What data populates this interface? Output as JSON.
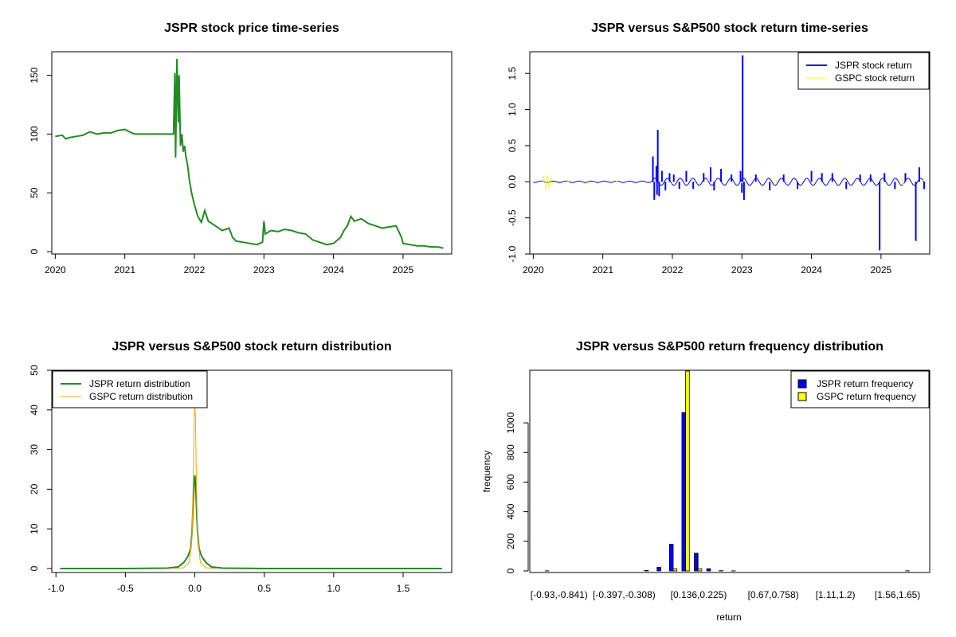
{
  "colors": {
    "jspr_price": "#228B22",
    "jspr_return": "#0000FF",
    "gspc_return": "#FFFF00",
    "jspr_density": "#228B22",
    "gspc_density": "#FFA500",
    "jspr_hist": "#0000FF",
    "gspc_hist": "#FFFF00"
  },
  "chart_data": [
    {
      "type": "line",
      "title": "JSPR stock price time-series",
      "xlabel": "",
      "ylabel": "",
      "xlim": [
        2019.95,
        2025.7
      ],
      "ylim": [
        -2,
        170
      ],
      "x_ticks": [
        2020,
        2021,
        2022,
        2023,
        2024,
        2025
      ],
      "x_tick_labels": [
        "2020",
        "2021",
        "2022",
        "2023",
        "2024",
        "2025"
      ],
      "y_ticks": [
        0,
        50,
        100,
        150
      ],
      "y_tick_labels": [
        "0",
        "50",
        "100",
        "150"
      ],
      "series": [
        {
          "name": "JSPR stock price",
          "color_key": "jspr_price",
          "x": [
            2020.0,
            2020.1,
            2020.15,
            2020.2,
            2020.3,
            2020.4,
            2020.5,
            2020.6,
            2020.7,
            2020.8,
            2020.9,
            2021.0,
            2021.1,
            2021.15,
            2021.2,
            2021.4,
            2021.6,
            2021.7,
            2021.72,
            2021.73,
            2021.75,
            2021.77,
            2021.78,
            2021.8,
            2021.82,
            2021.84,
            2021.86,
            2021.88,
            2021.9,
            2021.93,
            2021.96,
            2022.0,
            2022.05,
            2022.1,
            2022.15,
            2022.2,
            2022.3,
            2022.4,
            2022.5,
            2022.55,
            2022.6,
            2022.7,
            2022.8,
            2022.9,
            2022.98,
            2023.0,
            2023.02,
            2023.1,
            2023.2,
            2023.3,
            2023.4,
            2023.5,
            2023.6,
            2023.7,
            2023.8,
            2023.9,
            2024.0,
            2024.1,
            2024.15,
            2024.2,
            2024.25,
            2024.3,
            2024.4,
            2024.5,
            2024.6,
            2024.7,
            2024.8,
            2024.9,
            2024.98,
            2025.0,
            2025.1,
            2025.2,
            2025.3,
            2025.4,
            2025.5,
            2025.58
          ],
          "y": [
            98,
            99,
            96,
            97,
            98,
            99,
            102,
            100,
            101,
            101,
            103,
            104,
            101,
            100,
            100,
            100,
            100,
            100,
            152,
            80,
            164,
            110,
            150,
            90,
            100,
            85,
            90,
            80,
            75,
            60,
            50,
            40,
            30,
            25,
            35,
            26,
            22,
            18,
            20,
            12,
            9,
            8,
            7,
            6,
            8,
            26,
            15,
            18,
            17,
            19,
            18,
            16,
            15,
            10,
            8,
            6,
            7,
            12,
            18,
            22,
            30,
            26,
            28,
            24,
            22,
            20,
            21,
            22,
            12,
            7,
            6,
            5,
            5,
            4,
            4,
            3
          ]
        }
      ]
    },
    {
      "type": "line",
      "title": "JSPR versus S&P500 stock return time-series",
      "xlabel": "",
      "ylabel": "",
      "xlim": [
        2019.95,
        2025.7
      ],
      "ylim": [
        -1.0,
        1.8
      ],
      "x_ticks": [
        2020,
        2021,
        2022,
        2023,
        2024,
        2025
      ],
      "x_tick_labels": [
        "2020",
        "2021",
        "2022",
        "2023",
        "2024",
        "2025"
      ],
      "y_ticks": [
        -1.0,
        -0.5,
        0.0,
        0.5,
        1.0,
        1.5
      ],
      "y_tick_labels": [
        "-1.0",
        "-0.5",
        "0.0",
        "0.5",
        "1.0",
        "1.5"
      ],
      "legend": {
        "position": "top-right",
        "entries": [
          "JSPR stock return",
          "GSPC stock return"
        ]
      },
      "series": [
        {
          "name": "JSPR stock return",
          "color_key": "jspr_return",
          "spikes": [
            [
              2021.72,
              0.35
            ],
            [
              2021.74,
              -0.25
            ],
            [
              2021.77,
              0.22
            ],
            [
              2021.78,
              -0.18
            ],
            [
              2021.79,
              0.72
            ],
            [
              2021.81,
              -0.2
            ],
            [
              2021.85,
              0.15
            ],
            [
              2021.9,
              -0.12
            ],
            [
              2021.96,
              0.12
            ],
            [
              2022.02,
              0.1
            ],
            [
              2022.1,
              -0.1
            ],
            [
              2022.2,
              0.15
            ],
            [
              2022.3,
              -0.1
            ],
            [
              2022.45,
              0.12
            ],
            [
              2022.55,
              0.2
            ],
            [
              2022.6,
              -0.12
            ],
            [
              2022.7,
              0.18
            ],
            [
              2022.85,
              0.1
            ],
            [
              2022.98,
              0.15
            ],
            [
              2023.0,
              -0.15
            ],
            [
              2023.01,
              1.75
            ],
            [
              2023.03,
              -0.25
            ],
            [
              2023.2,
              0.1
            ],
            [
              2023.4,
              -0.12
            ],
            [
              2023.6,
              0.1
            ],
            [
              2023.8,
              -0.1
            ],
            [
              2024.0,
              0.15
            ],
            [
              2024.15,
              0.12
            ],
            [
              2024.3,
              0.12
            ],
            [
              2024.5,
              -0.1
            ],
            [
              2024.7,
              0.1
            ],
            [
              2024.85,
              0.1
            ],
            [
              2024.98,
              -0.95
            ],
            [
              2025.05,
              0.12
            ],
            [
              2025.2,
              -0.1
            ],
            [
              2025.35,
              0.12
            ],
            [
              2025.5,
              -0.82
            ],
            [
              2025.55,
              0.2
            ],
            [
              2025.62,
              -0.1
            ]
          ]
        },
        {
          "name": "GSPC stock return",
          "color_key": "gspc_return",
          "spikes": [
            [
              2020.15,
              0.08
            ],
            [
              2020.18,
              -0.1
            ],
            [
              2020.2,
              0.09
            ],
            [
              2020.22,
              -0.07
            ],
            [
              2020.25,
              0.05
            ],
            [
              2020.3,
              -0.03
            ],
            [
              2020.5,
              0.02
            ],
            [
              2020.8,
              -0.02
            ],
            [
              2021.2,
              0.02
            ],
            [
              2022.0,
              -0.03
            ],
            [
              2022.5,
              0.03
            ],
            [
              2023.0,
              -0.02
            ],
            [
              2023.5,
              0.02
            ],
            [
              2024.0,
              -0.02
            ],
            [
              2024.5,
              0.02
            ],
            [
              2025.0,
              -0.03
            ],
            [
              2025.3,
              0.04
            ],
            [
              2025.32,
              -0.05
            ],
            [
              2025.6,
              0.02
            ]
          ]
        }
      ]
    },
    {
      "type": "line",
      "title": "JSPR versus S&P500 stock return distribution",
      "xlabel": "",
      "ylabel": "",
      "xlim": [
        -1.03,
        1.85
      ],
      "ylim": [
        -1,
        50
      ],
      "x_ticks": [
        -1.0,
        -0.5,
        0.0,
        0.5,
        1.0,
        1.5
      ],
      "x_tick_labels": [
        "-1.0",
        "-0.5",
        "0.0",
        "0.5",
        "1.0",
        "1.5"
      ],
      "y_ticks": [
        0,
        10,
        20,
        30,
        40,
        50
      ],
      "y_tick_labels": [
        "0",
        "10",
        "20",
        "30",
        "40",
        "50"
      ],
      "legend": {
        "position": "top-left",
        "entries": [
          "JSPR return distribution",
          "GSPC return distribution"
        ]
      },
      "series": [
        {
          "name": "JSPR return distribution",
          "color_key": "jspr_density",
          "x": [
            -0.97,
            -0.5,
            -0.2,
            -0.12,
            -0.08,
            -0.05,
            -0.03,
            -0.02,
            -0.01,
            -0.005,
            0.0,
            0.005,
            0.01,
            0.02,
            0.03,
            0.05,
            0.08,
            0.12,
            0.2,
            0.5,
            1.0,
            1.78
          ],
          "y": [
            0,
            0,
            0.1,
            0.4,
            1.5,
            3,
            5,
            9,
            18,
            22,
            23.5,
            22,
            17,
            9,
            5,
            3,
            1.5,
            0.4,
            0.1,
            0,
            0,
            0
          ]
        },
        {
          "name": "GSPC return distribution",
          "color_key": "gspc_density",
          "x": [
            -0.15,
            -0.08,
            -0.04,
            -0.02,
            -0.01,
            -0.005,
            0.0,
            0.005,
            0.01,
            0.02,
            0.04,
            0.08,
            0.15
          ],
          "y": [
            0,
            0.2,
            1.5,
            8,
            25,
            38,
            41,
            38,
            25,
            8,
            1.5,
            0.2,
            0
          ]
        }
      ]
    },
    {
      "type": "bar",
      "title": "JSPR versus S&P500 return frequency distribution",
      "xlabel": "return",
      "ylabel": "frequency",
      "ylim": [
        0,
        1350
      ],
      "y_ticks": [
        0,
        200,
        400,
        600,
        800,
        1000
      ],
      "y_tick_labels": [
        "0",
        "200",
        "400",
        "600",
        "800",
        "1000"
      ],
      "category_count": 30,
      "x_tick_labels": [
        {
          "index": 0,
          "label": "[-0.93,-0.841)"
        },
        {
          "index": 6,
          "label": "[-0.397,-0.308)"
        },
        {
          "index": 12,
          "label": "[0.136,0.225)"
        },
        {
          "index": 18,
          "label": "[0.67,0.758)"
        },
        {
          "index": 23,
          "label": "[1.11,1.2)"
        },
        {
          "index": 28,
          "label": "[1.56,1.65)"
        }
      ],
      "legend": {
        "position": "top-right",
        "entries": [
          "JSPR return frequency",
          "GSPC return frequency"
        ]
      },
      "series": [
        {
          "name": "JSPR return frequency",
          "color_key": "jspr_hist",
          "values": [
            1,
            0,
            0,
            0,
            0,
            0,
            0,
            0,
            3,
            25,
            180,
            1070,
            120,
            15,
            2,
            1,
            0,
            0,
            0,
            0,
            0,
            0,
            0,
            0,
            0,
            0,
            0,
            0,
            0,
            1
          ]
        },
        {
          "name": "GSPC return frequency",
          "color_key": "gspc_hist",
          "values": [
            0,
            0,
            0,
            0,
            0,
            0,
            0,
            0,
            0,
            0,
            15,
            1350,
            15,
            0,
            0,
            0,
            0,
            0,
            0,
            0,
            0,
            0,
            0,
            0,
            0,
            0,
            0,
            0,
            0,
            0
          ]
        }
      ]
    }
  ]
}
